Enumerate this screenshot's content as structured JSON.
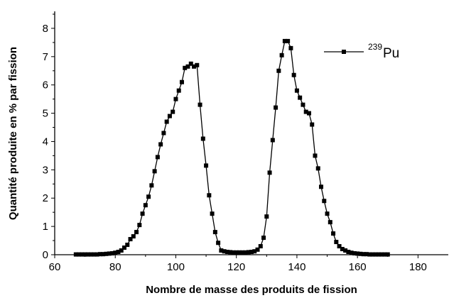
{
  "chart_data": {
    "type": "line",
    "title": "",
    "xlabel": "Nombre de masse des produits de fission",
    "ylabel": "Quantité produite en % par fission",
    "xlim": [
      60,
      190
    ],
    "ylim": [
      0,
      8.6
    ],
    "xticks": [
      60,
      80,
      100,
      120,
      140,
      160,
      180
    ],
    "yticks": [
      0,
      1,
      2,
      3,
      4,
      5,
      6,
      7,
      8
    ],
    "grid": false,
    "legend_position": "top-right",
    "legend": {
      "superscript": "239",
      "text": "Pu"
    },
    "series": [
      {
        "name": "239Pu",
        "color": "#000000",
        "marker": "square",
        "x": [
          67,
          68,
          69,
          70,
          71,
          72,
          73,
          74,
          75,
          76,
          77,
          78,
          79,
          80,
          81,
          82,
          83,
          84,
          85,
          86,
          87,
          88,
          89,
          90,
          91,
          92,
          93,
          94,
          95,
          96,
          97,
          98,
          99,
          100,
          101,
          102,
          103,
          104,
          105,
          106,
          107,
          108,
          109,
          110,
          111,
          112,
          113,
          114,
          115,
          116,
          117,
          118,
          119,
          120,
          121,
          122,
          123,
          124,
          125,
          126,
          127,
          128,
          129,
          130,
          131,
          132,
          133,
          134,
          135,
          136,
          137,
          138,
          139,
          140,
          141,
          142,
          143,
          144,
          145,
          146,
          147,
          148,
          149,
          150,
          151,
          152,
          153,
          154,
          155,
          156,
          157,
          158,
          159,
          160,
          161,
          162,
          163,
          164,
          165,
          166,
          167,
          168,
          169,
          170
        ],
        "values": [
          0.01,
          0.01,
          0.01,
          0.01,
          0.01,
          0.01,
          0.01,
          0.01,
          0.02,
          0.02,
          0.03,
          0.04,
          0.05,
          0.07,
          0.1,
          0.15,
          0.25,
          0.35,
          0.55,
          0.65,
          0.8,
          1.05,
          1.45,
          1.75,
          2.05,
          2.45,
          2.95,
          3.45,
          3.9,
          4.3,
          4.7,
          4.9,
          5.05,
          5.5,
          5.8,
          6.1,
          6.6,
          6.65,
          6.75,
          6.65,
          6.7,
          5.3,
          4.1,
          3.15,
          2.1,
          1.45,
          0.8,
          0.42,
          0.15,
          0.12,
          0.1,
          0.09,
          0.08,
          0.08,
          0.08,
          0.08,
          0.08,
          0.09,
          0.1,
          0.12,
          0.18,
          0.3,
          0.6,
          1.35,
          2.9,
          4.05,
          5.2,
          6.5,
          7.05,
          7.55,
          7.55,
          7.3,
          6.35,
          5.8,
          5.55,
          5.3,
          5.05,
          5.0,
          4.6,
          3.5,
          3.05,
          2.4,
          1.9,
          1.45,
          1.15,
          0.75,
          0.45,
          0.3,
          0.2,
          0.15,
          0.1,
          0.07,
          0.05,
          0.04,
          0.03,
          0.02,
          0.02,
          0.01,
          0.01,
          0.01,
          0.01,
          0.01,
          0.01,
          0.01
        ]
      }
    ]
  }
}
